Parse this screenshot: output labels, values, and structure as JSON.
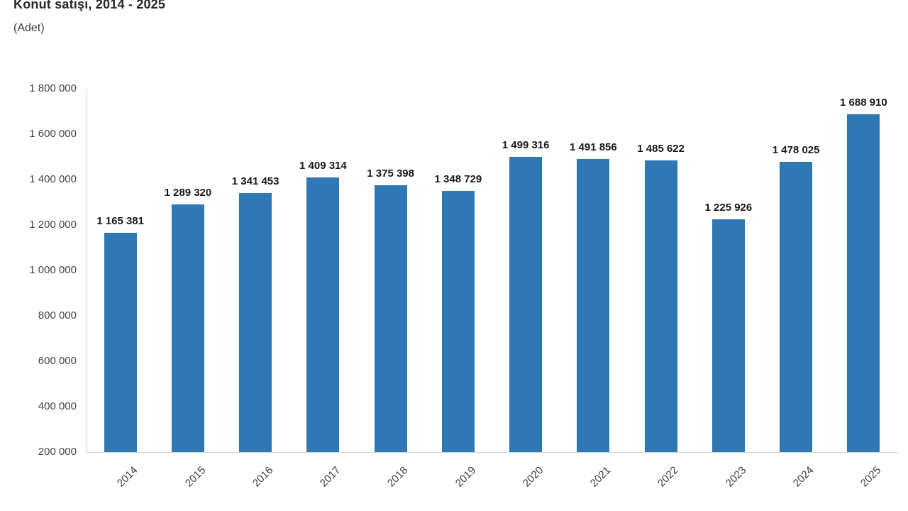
{
  "header": {
    "title": "Konut satışı, 2014 - 2025",
    "subtitle": "(Adet)"
  },
  "chart_data": {
    "type": "bar",
    "title": "Konut satışı, 2014 - 2025",
    "subtitle": "(Adet)",
    "ylabel": "(Adet)",
    "xlabel": "",
    "categories": [
      "2014",
      "2015",
      "2016",
      "2017",
      "2018",
      "2019",
      "2020",
      "2021",
      "2022",
      "2023",
      "2024",
      "2025"
    ],
    "values": [
      1165381,
      1289320,
      1341453,
      1409314,
      1375398,
      1348729,
      1499316,
      1491856,
      1485622,
      1225926,
      1478025,
      1688910
    ],
    "value_labels": [
      "1 165 381",
      "1 289 320",
      "1 341 453",
      "1 409 314",
      "1 375 398",
      "1 348 729",
      "1 499 316",
      "1 491 856",
      "1 485 622",
      "1 225 926",
      "1 478 025",
      "1 688 910"
    ],
    "ylim": [
      200000,
      1800000
    ],
    "ytick_step": 200000,
    "ytick_labels": [
      "200 000",
      "400 000",
      "600 000",
      "800 000",
      "1 000 000",
      "1 200 000",
      "1 400 000",
      "1 600 000",
      "1 800 000"
    ],
    "grid": false,
    "legend": "none",
    "bar_color": "#2e79b5",
    "axis_line_color": "#d4d4d4",
    "tick_label_color": "#444444",
    "value_label_color": "#191919",
    "title_color": "#262631"
  }
}
